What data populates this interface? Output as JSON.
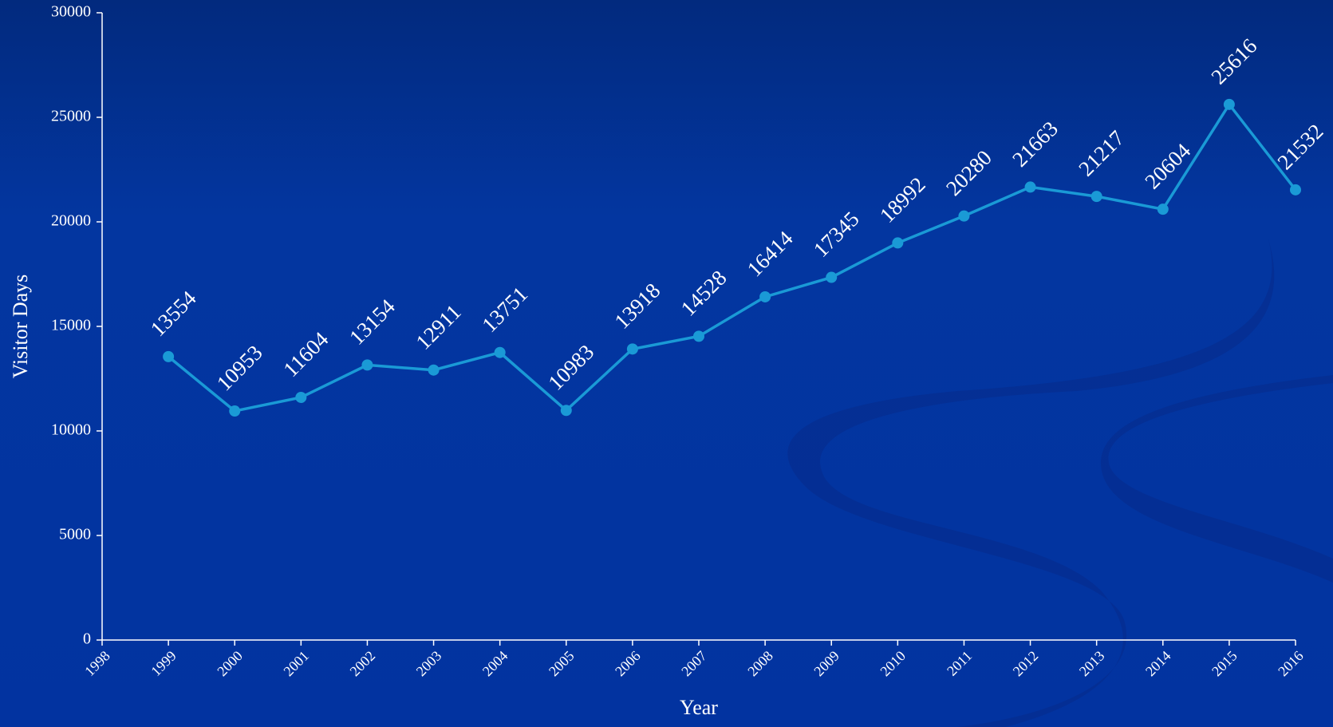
{
  "chart_data": {
    "type": "line",
    "x_label": "Year",
    "y_label": "Visitor Days",
    "x": [
      1999,
      2000,
      2001,
      2002,
      2003,
      2004,
      2005,
      2006,
      2007,
      2008,
      2009,
      2010,
      2011,
      2012,
      2013,
      2014,
      2015,
      2016
    ],
    "series": [
      {
        "color": "#1a9ad6",
        "values": [
          13554,
          10953,
          11604,
          13154,
          12911,
          13751,
          10983,
          13918,
          14528,
          16414,
          17345,
          18992,
          20280,
          21663,
          21217,
          20604,
          25616,
          21532
        ]
      }
    ],
    "xlim": [
      1998,
      2016
    ],
    "xticks": [
      1998,
      1999,
      2000,
      2001,
      2002,
      2003,
      2004,
      2005,
      2006,
      2007,
      2008,
      2009,
      2010,
      2011,
      2012,
      2013,
      2014,
      2015,
      2016
    ],
    "ylim": [
      0,
      30000
    ],
    "yticks": [
      0,
      5000,
      10000,
      15000,
      20000,
      25000,
      30000
    ],
    "grid": false,
    "data_labels": true
  }
}
